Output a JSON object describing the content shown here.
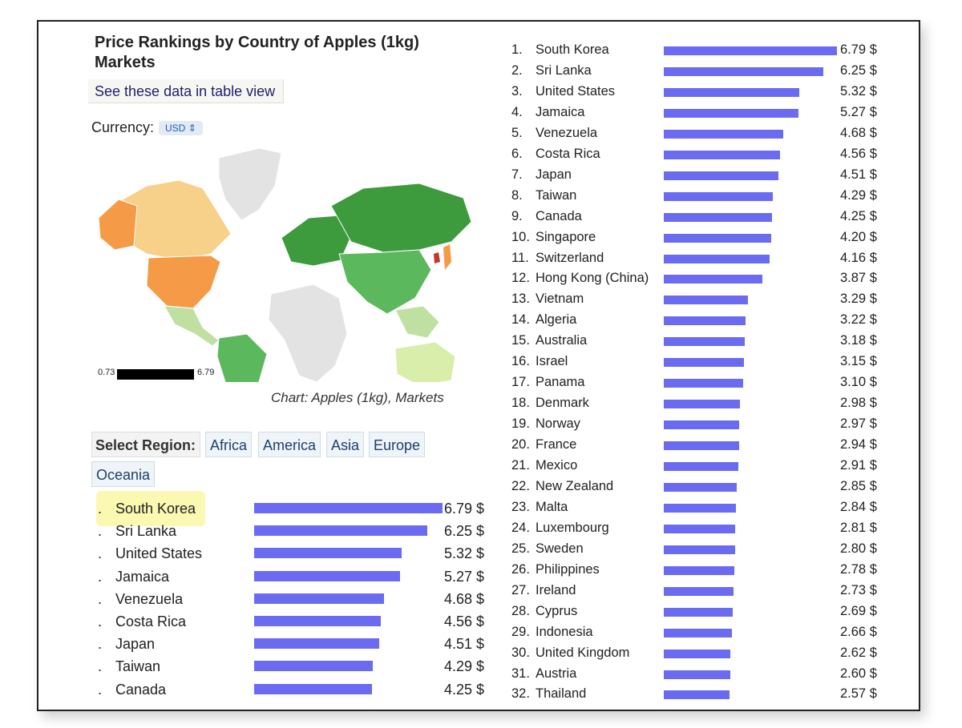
{
  "header": {
    "title": "Price Rankings by Country of Apples (1kg) - Markets",
    "title_line1": "Price Rankings by Country of Apples (1kg)",
    "title_line2": "Markets",
    "table_view_link": "See these data in table view",
    "currency_label": "Currency:",
    "currency_value": "USD"
  },
  "map": {
    "legend_min": "0.73",
    "legend_max": "6.79",
    "caption": "Chart: Apples (1kg), Markets",
    "colors": {
      "high": "#f59a46",
      "mid": "#f7d08a",
      "low_green": "#3d9b3d",
      "no_data": "#e3e3e3",
      "highest": "#c0392b"
    }
  },
  "region_selector": {
    "label": "Select Region:",
    "buttons": [
      "Africa",
      "America",
      "Asia",
      "Europe",
      "Oceania"
    ]
  },
  "chart_data": {
    "type": "bar",
    "orientation": "horizontal",
    "unit": "$",
    "max_value": 6.79,
    "bar_color": "#6b6bf2",
    "categories": [
      "South Korea",
      "Sri Lanka",
      "United States",
      "Jamaica",
      "Venezuela",
      "Costa Rica",
      "Japan",
      "Taiwan",
      "Canada",
      "Singapore",
      "Switzerland",
      "Hong Kong (China)",
      "Vietnam",
      "Algeria",
      "Australia",
      "Israel",
      "Panama",
      "Denmark",
      "Norway",
      "France",
      "Mexico",
      "New Zealand",
      "Malta",
      "Luxembourg",
      "Sweden",
      "Philippines",
      "Ireland",
      "Cyprus",
      "Indonesia",
      "United Kingdom",
      "Austria",
      "Thailand"
    ],
    "values": [
      6.79,
      6.25,
      5.32,
      5.27,
      4.68,
      4.56,
      4.51,
      4.29,
      4.25,
      4.2,
      4.16,
      3.87,
      3.29,
      3.22,
      3.18,
      3.15,
      3.1,
      2.98,
      2.97,
      2.94,
      2.91,
      2.85,
      2.84,
      2.81,
      2.8,
      2.78,
      2.73,
      2.69,
      2.66,
      2.62,
      2.6,
      2.57
    ],
    "value_labels": [
      "6.79 $",
      "6.25 $",
      "5.32 $",
      "5.27 $",
      "4.68 $",
      "4.56 $",
      "4.51 $",
      "4.29 $",
      "4.25 $",
      "4.20 $",
      "4.16 $",
      "3.87 $",
      "3.29 $",
      "3.22 $",
      "3.18 $",
      "3.15 $",
      "3.10 $",
      "2.98 $",
      "2.97 $",
      "2.94 $",
      "2.91 $",
      "2.85 $",
      "2.84 $",
      "2.81 $",
      "2.80 $",
      "2.78 $",
      "2.73 $",
      "2.69 $",
      "2.66 $",
      "2.62 $",
      "2.60 $",
      "2.57 $"
    ],
    "highlighted": "South Korea"
  }
}
